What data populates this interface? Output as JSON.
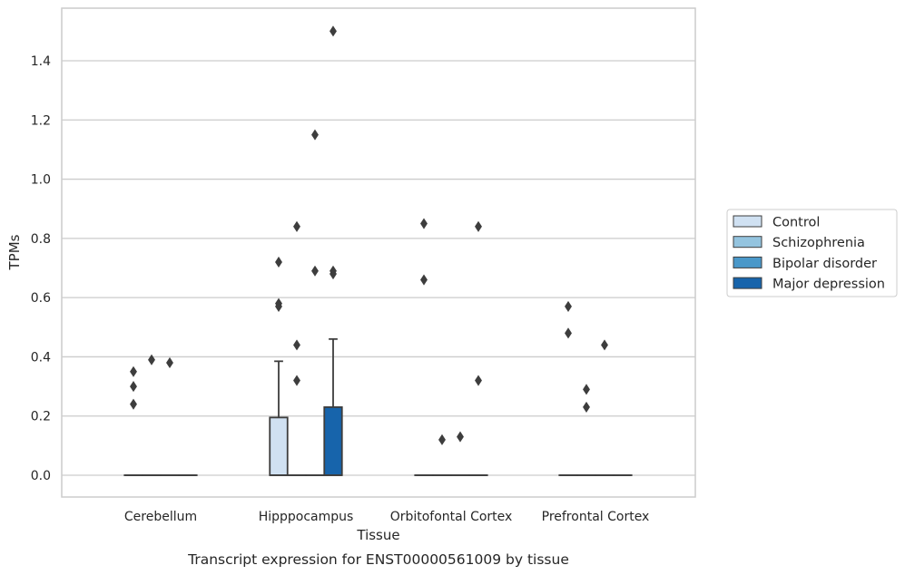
{
  "chart_data": {
    "type": "box",
    "xlabel": "Tissue",
    "ylabel": "TPMs",
    "caption": "Transcript expression for ENST00000561009 by tissue",
    "ylim": [
      -0.07,
      1.58
    ],
    "yticks": [
      "0.0",
      "0.2",
      "0.4",
      "0.6",
      "0.8",
      "1.0",
      "1.2",
      "1.4"
    ],
    "grid": "horizontal",
    "legend_position": "right",
    "categories": [
      "Cerebellum",
      "Hipppocampus",
      "Orbitofontal Cortex",
      "Prefrontal Cortex"
    ],
    "series": [
      {
        "name": "Control",
        "color": "#d0e1f2",
        "boxes": [
          {
            "q1": 0,
            "median": 0,
            "q3": 0,
            "whisker_low": 0,
            "whisker_high": 0,
            "outliers": [
              0.35,
              0.3,
              0.24
            ]
          },
          {
            "q1": 0,
            "median": 0,
            "q3": 0.195,
            "whisker_low": 0,
            "whisker_high": 0.385,
            "outliers": [
              0.72,
              0.58,
              0.57
            ]
          },
          {
            "q1": 0,
            "median": 0,
            "q3": 0,
            "whisker_low": 0,
            "whisker_high": 0,
            "outliers": [
              0.85,
              0.66
            ]
          },
          {
            "q1": 0,
            "median": 0,
            "q3": 0,
            "whisker_low": 0,
            "whisker_high": 0,
            "outliers": [
              0.57,
              0.48
            ]
          }
        ]
      },
      {
        "name": "Schizophrenia",
        "color": "#94c4df",
        "boxes": [
          {
            "q1": 0,
            "median": 0,
            "q3": 0,
            "whisker_low": 0,
            "whisker_high": 0,
            "outliers": [
              0.39
            ]
          },
          {
            "q1": 0,
            "median": 0,
            "q3": 0,
            "whisker_low": 0,
            "whisker_high": 0,
            "outliers": [
              0.84,
              0.44,
              0.32
            ]
          },
          {
            "q1": 0,
            "median": 0,
            "q3": 0,
            "whisker_low": 0,
            "whisker_high": 0,
            "outliers": [
              0.12
            ]
          },
          {
            "q1": 0,
            "median": 0,
            "q3": 0,
            "whisker_low": 0,
            "whisker_high": 0,
            "outliers": [
              0.29,
              0.23
            ]
          }
        ]
      },
      {
        "name": "Bipolar disorder",
        "color": "#4a98c9",
        "boxes": [
          {
            "q1": 0,
            "median": 0,
            "q3": 0,
            "whisker_low": 0,
            "whisker_high": 0,
            "outliers": [
              0.38
            ]
          },
          {
            "q1": 0,
            "median": 0,
            "q3": 0,
            "whisker_low": 0,
            "whisker_high": 0,
            "outliers": [
              1.15,
              0.69
            ]
          },
          {
            "q1": 0,
            "median": 0,
            "q3": 0,
            "whisker_low": 0,
            "whisker_high": 0,
            "outliers": [
              0.13
            ]
          },
          {
            "q1": 0,
            "median": 0,
            "q3": 0,
            "whisker_low": 0,
            "whisker_high": 0,
            "outliers": [
              0.44
            ]
          }
        ]
      },
      {
        "name": "Major depression",
        "color": "#1764ab",
        "boxes": [
          {
            "q1": 0,
            "median": 0,
            "q3": 0,
            "whisker_low": 0,
            "whisker_high": 0,
            "outliers": []
          },
          {
            "q1": 0,
            "median": 0,
            "q3": 0.23,
            "whisker_low": 0,
            "whisker_high": 0.46,
            "outliers": [
              1.5,
              0.69,
              0.68
            ]
          },
          {
            "q1": 0,
            "median": 0,
            "q3": 0,
            "whisker_low": 0,
            "whisker_high": 0,
            "outliers": [
              0.84,
              0.32
            ]
          },
          {
            "q1": 0,
            "median": 0,
            "q3": 0,
            "whisker_low": 0,
            "whisker_high": 0,
            "outliers": []
          }
        ]
      }
    ]
  }
}
